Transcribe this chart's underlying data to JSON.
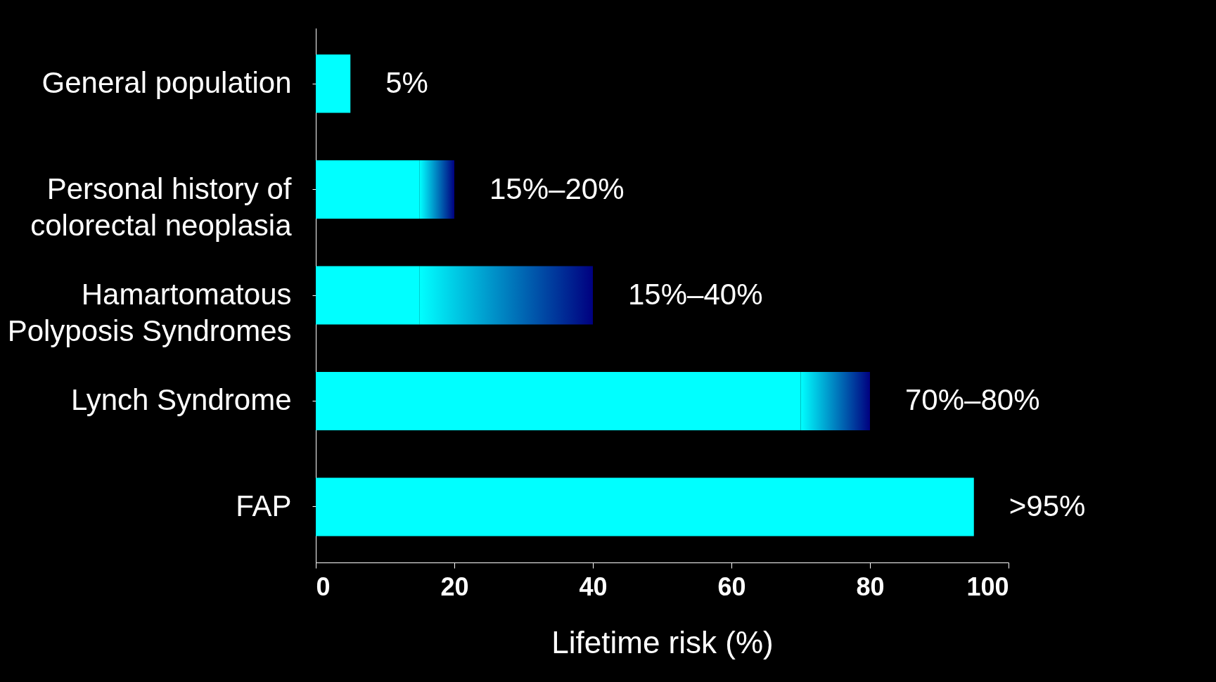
{
  "chart_data": {
    "type": "bar",
    "orientation": "horizontal",
    "stacked": true,
    "xlabel": "Lifetime risk (%)",
    "categories": [
      "General population",
      "Personal history of colorectal neoplasia",
      "Hamartomatous Polyposis Syndromes",
      "Lynch Syndrome",
      "FAP"
    ],
    "series": [
      {
        "color": "#00ffff",
        "values": [
          5,
          15,
          15,
          70,
          95
        ]
      },
      {
        "color": "#000080",
        "values": [
          null,
          5,
          25,
          10,
          null
        ]
      }
    ],
    "totals": [
      "5%",
      "15%–20%",
      "15%–40%",
      "70%–80%",
      ">95%"
    ],
    "xlim": [
      0,
      100
    ],
    "xticks": [
      0,
      20,
      40,
      60,
      80,
      100
    ],
    "grid": false
  }
}
